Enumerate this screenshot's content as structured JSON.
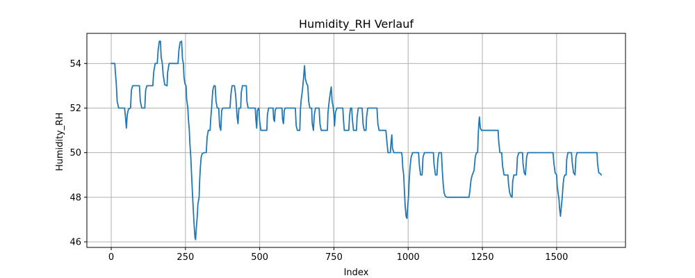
{
  "chart_data": {
    "type": "line",
    "title": "Humidity_RH Verlauf",
    "xlabel": "Index",
    "ylabel": "Humidity_RH",
    "xlim": [
      -82,
      1732
    ],
    "ylim": [
      45.75,
      55.35
    ],
    "xticks": [
      0,
      250,
      500,
      750,
      1000,
      1250,
      1500
    ],
    "yticks": [
      46,
      48,
      50,
      52,
      54
    ],
    "grid": true,
    "series": [
      {
        "color": "#1f77b4",
        "points": [
          [
            0,
            54
          ],
          [
            12,
            54
          ],
          [
            14,
            53.6
          ],
          [
            17,
            53.1
          ],
          [
            20,
            52.3
          ],
          [
            25,
            52
          ],
          [
            45,
            52
          ],
          [
            48,
            51.6
          ],
          [
            51,
            51.1
          ],
          [
            54,
            51.7
          ],
          [
            58,
            51.95
          ],
          [
            65,
            52
          ],
          [
            68,
            52.8
          ],
          [
            72,
            53
          ],
          [
            95,
            53
          ],
          [
            98,
            52.3
          ],
          [
            103,
            52
          ],
          [
            113,
            52
          ],
          [
            116,
            52.8
          ],
          [
            120,
            53
          ],
          [
            140,
            53
          ],
          [
            143,
            53.6
          ],
          [
            148,
            54
          ],
          [
            155,
            54
          ],
          [
            158,
            54.6
          ],
          [
            162,
            55
          ],
          [
            166,
            55
          ],
          [
            168,
            54.3
          ],
          [
            172,
            54
          ],
          [
            175,
            53.5
          ],
          [
            180,
            53.05
          ],
          [
            188,
            53
          ],
          [
            190,
            53.6
          ],
          [
            195,
            54
          ],
          [
            225,
            54
          ],
          [
            228,
            54.6
          ],
          [
            232,
            54.95
          ],
          [
            237,
            55
          ],
          [
            240,
            54.2
          ],
          [
            243,
            54
          ],
          [
            245,
            53.4
          ],
          [
            248,
            53.1
          ],
          [
            252,
            53
          ],
          [
            254,
            52.4
          ],
          [
            258,
            52
          ],
          [
            260,
            51.5
          ],
          [
            263,
            51
          ],
          [
            265,
            50.4
          ],
          [
            268,
            49.8
          ],
          [
            271,
            48.9
          ],
          [
            275,
            47.8
          ],
          [
            279,
            46.8
          ],
          [
            282,
            46.2
          ],
          [
            284,
            46.1
          ],
          [
            286,
            46.5
          ],
          [
            290,
            47.2
          ],
          [
            292,
            47.7
          ],
          [
            296,
            48
          ],
          [
            298,
            48.8
          ],
          [
            300,
            49.3
          ],
          [
            303,
            49.8
          ],
          [
            306,
            49.95
          ],
          [
            312,
            50
          ],
          [
            320,
            50
          ],
          [
            323,
            50.7
          ],
          [
            327,
            51
          ],
          [
            333,
            51
          ],
          [
            335,
            51.5
          ],
          [
            338,
            52
          ],
          [
            342,
            52.8
          ],
          [
            346,
            53
          ],
          [
            350,
            53
          ],
          [
            353,
            52.3
          ],
          [
            357,
            52
          ],
          [
            362,
            52
          ],
          [
            365,
            51.2
          ],
          [
            369,
            51
          ],
          [
            372,
            51.9
          ],
          [
            376,
            52
          ],
          [
            400,
            52
          ],
          [
            403,
            52.6
          ],
          [
            407,
            53
          ],
          [
            415,
            53
          ],
          [
            419,
            52.6
          ],
          [
            422,
            52
          ],
          [
            424,
            51.6
          ],
          [
            427,
            51.3
          ],
          [
            430,
            52
          ],
          [
            436,
            52
          ],
          [
            438,
            52.7
          ],
          [
            442,
            53
          ],
          [
            455,
            53
          ],
          [
            457,
            52.3
          ],
          [
            461,
            52
          ],
          [
            485,
            52
          ],
          [
            487,
            51.5
          ],
          [
            490,
            51.1
          ],
          [
            492,
            51.9
          ],
          [
            497,
            52
          ],
          [
            500,
            51.4
          ],
          [
            504,
            51
          ],
          [
            524,
            51
          ],
          [
            526,
            51.7
          ],
          [
            530,
            52
          ],
          [
            545,
            52
          ],
          [
            547,
            51.5
          ],
          [
            550,
            51.4
          ],
          [
            552,
            51.9
          ],
          [
            556,
            52
          ],
          [
            575,
            52
          ],
          [
            577,
            51.5
          ],
          [
            580,
            51.3
          ],
          [
            583,
            51.9
          ],
          [
            586,
            52
          ],
          [
            620,
            52
          ],
          [
            623,
            51.2
          ],
          [
            627,
            51
          ],
          [
            635,
            51
          ],
          [
            637,
            51.9
          ],
          [
            640,
            52.4
          ],
          [
            644,
            52.8
          ],
          [
            648,
            53.4
          ],
          [
            651,
            53.9
          ],
          [
            654,
            53.3
          ],
          [
            658,
            53.1
          ],
          [
            662,
            53
          ],
          [
            665,
            52.3
          ],
          [
            669,
            52
          ],
          [
            675,
            52
          ],
          [
            677,
            51.3
          ],
          [
            681,
            51
          ],
          [
            684,
            51.7
          ],
          [
            688,
            52
          ],
          [
            700,
            52
          ],
          [
            703,
            51.3
          ],
          [
            707,
            51
          ],
          [
            728,
            51
          ],
          [
            730,
            51.8
          ],
          [
            734,
            52.3
          ],
          [
            738,
            52.7
          ],
          [
            741,
            52.95
          ],
          [
            744,
            52.3
          ],
          [
            748,
            52
          ],
          [
            750,
            51.7
          ],
          [
            752,
            51.2
          ],
          [
            755,
            51.8
          ],
          [
            760,
            52
          ],
          [
            780,
            52
          ],
          [
            782,
            51.5
          ],
          [
            785,
            51
          ],
          [
            800,
            51
          ],
          [
            803,
            51.7
          ],
          [
            806,
            52
          ],
          [
            810,
            52
          ],
          [
            812,
            51.5
          ],
          [
            816,
            51
          ],
          [
            826,
            51
          ],
          [
            828,
            51.6
          ],
          [
            832,
            52
          ],
          [
            845,
            52
          ],
          [
            848,
            51.3
          ],
          [
            852,
            51
          ],
          [
            858,
            51
          ],
          [
            860,
            51.6
          ],
          [
            864,
            52
          ],
          [
            895,
            52
          ],
          [
            898,
            51.3
          ],
          [
            902,
            51
          ],
          [
            925,
            51
          ],
          [
            927,
            50.7
          ],
          [
            932,
            50
          ],
          [
            940,
            50
          ],
          [
            942,
            50.4
          ],
          [
            945,
            50.8
          ],
          [
            947,
            50.2
          ],
          [
            952,
            50
          ],
          [
            978,
            50
          ],
          [
            980,
            49.8
          ],
          [
            982,
            49.3
          ],
          [
            985,
            49
          ],
          [
            987,
            48.4
          ],
          [
            990,
            47.6
          ],
          [
            993,
            47.15
          ],
          [
            996,
            47.05
          ],
          [
            998,
            47.5
          ],
          [
            1001,
            48
          ],
          [
            1003,
            48.6
          ],
          [
            1006,
            49.3
          ],
          [
            1010,
            49.8
          ],
          [
            1015,
            50
          ],
          [
            1035,
            50
          ],
          [
            1038,
            49.4
          ],
          [
            1042,
            49
          ],
          [
            1047,
            49
          ],
          [
            1050,
            49.8
          ],
          [
            1055,
            50
          ],
          [
            1085,
            50
          ],
          [
            1087,
            49.5
          ],
          [
            1092,
            49
          ],
          [
            1097,
            49
          ],
          [
            1100,
            49.7
          ],
          [
            1104,
            50
          ],
          [
            1112,
            50
          ],
          [
            1115,
            49.2
          ],
          [
            1118,
            48.6
          ],
          [
            1121,
            48.2
          ],
          [
            1125,
            48.05
          ],
          [
            1130,
            48
          ],
          [
            1205,
            48
          ],
          [
            1208,
            48.3
          ],
          [
            1212,
            48.8
          ],
          [
            1216,
            49
          ],
          [
            1222,
            49.2
          ],
          [
            1226,
            49.8
          ],
          [
            1230,
            50
          ],
          [
            1234,
            50
          ],
          [
            1236,
            50.8
          ],
          [
            1238,
            51.3
          ],
          [
            1240,
            51.6
          ],
          [
            1243,
            51.1
          ],
          [
            1247,
            51
          ],
          [
            1303,
            51
          ],
          [
            1305,
            50.5
          ],
          [
            1309,
            50
          ],
          [
            1315,
            50
          ],
          [
            1318,
            49.4
          ],
          [
            1323,
            49
          ],
          [
            1336,
            49
          ],
          [
            1338,
            48.6
          ],
          [
            1342,
            48.2
          ],
          [
            1346,
            48.05
          ],
          [
            1350,
            48
          ],
          [
            1352,
            48.7
          ],
          [
            1356,
            49
          ],
          [
            1365,
            49
          ],
          [
            1368,
            49.8
          ],
          [
            1373,
            50
          ],
          [
            1385,
            50
          ],
          [
            1387,
            49.5
          ],
          [
            1391,
            49.1
          ],
          [
            1395,
            49
          ],
          [
            1399,
            49.8
          ],
          [
            1403,
            50
          ],
          [
            1488,
            50
          ],
          [
            1491,
            49.5
          ],
          [
            1495,
            49.1
          ],
          [
            1500,
            49
          ],
          [
            1502,
            48.5
          ],
          [
            1505,
            48.2
          ],
          [
            1508,
            47.9
          ],
          [
            1510,
            47.5
          ],
          [
            1513,
            47.15
          ],
          [
            1516,
            47.6
          ],
          [
            1519,
            48
          ],
          [
            1522,
            48.6
          ],
          [
            1525,
            48.9
          ],
          [
            1528,
            49
          ],
          [
            1532,
            49
          ],
          [
            1534,
            49.7
          ],
          [
            1538,
            50
          ],
          [
            1550,
            50
          ],
          [
            1553,
            49.5
          ],
          [
            1557,
            49.1
          ],
          [
            1562,
            49
          ],
          [
            1565,
            49.8
          ],
          [
            1569,
            50
          ],
          [
            1636,
            50
          ],
          [
            1638,
            49.5
          ],
          [
            1642,
            49.1
          ],
          [
            1648,
            49.05
          ],
          [
            1650,
            49
          ]
        ]
      }
    ]
  }
}
